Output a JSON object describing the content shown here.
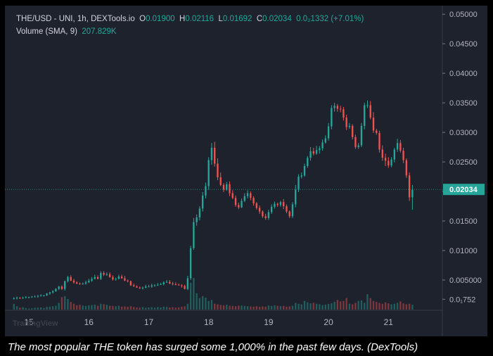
{
  "header": {
    "symbol": "THE/USD - UNI, 1h, DEXTools.io",
    "o_label": "O",
    "o_value": "0.01900",
    "h_label": "H",
    "h_value": "0.02116",
    "l_label": "L",
    "l_value": "0.01692",
    "c_label": "C",
    "c_value": "0.02034",
    "change": "0.0₂1332 (+7.01%)",
    "volume_label": "Volume (SMA, 9)",
    "volume_value": "207.829K"
  },
  "caption": "The most popular THE token has surged some 1,000% in the past few days. (DexTools)",
  "watermark": "TradingView",
  "colors": {
    "up": "#26a69a",
    "down": "#ef5350",
    "background": "#1e222d",
    "price_tag": "#26a69a"
  },
  "chart_data": {
    "type": "candlestick",
    "timeframe": "1h",
    "x": [
      14.75,
      14.8,
      14.85,
      14.9,
      14.95,
      15,
      15.05,
      15.1,
      15.15,
      15.2,
      15.25,
      15.3,
      15.35,
      15.4,
      15.45,
      15.5,
      15.55,
      15.6,
      15.65,
      15.7,
      15.75,
      15.8,
      15.85,
      15.9,
      15.95,
      16,
      16.05,
      16.1,
      16.15,
      16.2,
      16.25,
      16.3,
      16.35,
      16.4,
      16.45,
      16.5,
      16.55,
      16.6,
      16.65,
      16.7,
      16.75,
      16.8,
      16.85,
      16.9,
      16.95,
      17,
      17.05,
      17.1,
      17.15,
      17.2,
      17.25,
      17.3,
      17.35,
      17.4,
      17.45,
      17.5,
      17.55,
      17.6,
      17.65,
      17.7,
      17.75,
      17.8,
      17.85,
      17.9,
      17.95,
      18,
      18.05,
      18.1,
      18.15,
      18.2,
      18.25,
      18.3,
      18.35,
      18.4,
      18.45,
      18.5,
      18.55,
      18.6,
      18.65,
      18.7,
      18.75,
      18.8,
      18.85,
      18.9,
      18.95,
      19,
      19.05,
      19.1,
      19.15,
      19.2,
      19.25,
      19.3,
      19.35,
      19.4,
      19.45,
      19.5,
      19.55,
      19.6,
      19.65,
      19.7,
      19.75,
      19.8,
      19.85,
      19.9,
      19.95,
      20,
      20.05,
      20.1,
      20.15,
      20.2,
      20.25,
      20.3,
      20.35,
      20.4,
      20.45,
      20.5,
      20.55,
      20.6,
      20.65,
      20.7,
      20.75,
      20.8,
      20.85,
      20.9,
      20.95,
      21,
      21.05,
      21.1,
      21.15,
      21.2,
      21.25,
      21.3,
      21.35,
      21.4
    ],
    "open": [
      0.0018,
      0.0019,
      0.002,
      0.0019,
      0.002,
      0.0021,
      0.0021,
      0.0022,
      0.0022,
      0.0023,
      0.0024,
      0.0024,
      0.0027,
      0.0029,
      0.0031,
      0.0035,
      0.0039,
      0.0035,
      0.0048,
      0.0055,
      0.0049,
      0.0046,
      0.0044,
      0.0043,
      0.0044,
      0.0046,
      0.0049,
      0.0052,
      0.0055,
      0.0052,
      0.0062,
      0.0059,
      0.006,
      0.0055,
      0.0051,
      0.0052,
      0.0056,
      0.0053,
      0.0049,
      0.0048,
      0.0041,
      0.0039,
      0.0037,
      0.0036,
      0.0037,
      0.0039,
      0.0039,
      0.0041,
      0.0041,
      0.0042,
      0.0043,
      0.0046,
      0.0047,
      0.0044,
      0.0043,
      0.0042,
      0.0041,
      0.004,
      0.0035,
      0.0053,
      0.0104,
      0.0148,
      0.0156,
      0.0171,
      0.0193,
      0.0209,
      0.0253,
      0.0274,
      0.0247,
      0.0224,
      0.0211,
      0.0203,
      0.0212,
      0.0197,
      0.0189,
      0.0177,
      0.0173,
      0.0184,
      0.0192,
      0.0197,
      0.0189,
      0.018,
      0.0172,
      0.0166,
      0.0158,
      0.0155,
      0.0165,
      0.0174,
      0.0179,
      0.0177,
      0.0182,
      0.0175,
      0.0166,
      0.0158,
      0.0178,
      0.0203,
      0.0225,
      0.0227,
      0.0243,
      0.0257,
      0.0268,
      0.0264,
      0.027,
      0.0273,
      0.0283,
      0.029,
      0.031,
      0.0341,
      0.0345,
      0.034,
      0.0339,
      0.0325,
      0.0309,
      0.0311,
      0.0292,
      0.0275,
      0.0278,
      0.0311,
      0.0346,
      0.0346,
      0.0325,
      0.0303,
      0.0299,
      0.0271,
      0.0257,
      0.0252,
      0.0244,
      0.0254,
      0.0271,
      0.0282,
      0.0269,
      0.0253,
      0.0227,
      0.019
    ],
    "high": [
      0.0021,
      0.0022,
      0.0021,
      0.0022,
      0.0023,
      0.0022,
      0.0023,
      0.0024,
      0.0025,
      0.0026,
      0.0025,
      0.0028,
      0.003,
      0.0033,
      0.0036,
      0.004,
      0.0041,
      0.0049,
      0.0057,
      0.0058,
      0.0052,
      0.0048,
      0.0046,
      0.0046,
      0.0049,
      0.0052,
      0.0055,
      0.0059,
      0.0058,
      0.0065,
      0.0065,
      0.0063,
      0.0063,
      0.0058,
      0.0054,
      0.0059,
      0.0059,
      0.0057,
      0.0051,
      0.0049,
      0.0044,
      0.0041,
      0.0039,
      0.0039,
      0.0042,
      0.0042,
      0.0044,
      0.0043,
      0.0045,
      0.0045,
      0.0048,
      0.005,
      0.005,
      0.0047,
      0.0046,
      0.0044,
      0.0043,
      0.0042,
      0.0057,
      0.0108,
      0.0155,
      0.0161,
      0.0175,
      0.0199,
      0.0215,
      0.0258,
      0.0282,
      0.0284,
      0.0256,
      0.0232,
      0.0214,
      0.0216,
      0.0217,
      0.0202,
      0.0193,
      0.0181,
      0.0188,
      0.0197,
      0.0202,
      0.02,
      0.0192,
      0.0182,
      0.0176,
      0.0168,
      0.0162,
      0.0169,
      0.0178,
      0.0183,
      0.0181,
      0.0184,
      0.0187,
      0.0178,
      0.0168,
      0.0182,
      0.0211,
      0.0229,
      0.0232,
      0.0247,
      0.026,
      0.0275,
      0.0274,
      0.0277,
      0.0277,
      0.0288,
      0.0295,
      0.0316,
      0.0346,
      0.035,
      0.0348,
      0.0345,
      0.0343,
      0.033,
      0.0316,
      0.0314,
      0.0296,
      0.0282,
      0.0316,
      0.035,
      0.0354,
      0.0353,
      0.0334,
      0.0306,
      0.0303,
      0.0278,
      0.0264,
      0.0258,
      0.0258,
      0.0274,
      0.0289,
      0.0287,
      0.0274,
      0.0256,
      0.0232,
      0.0211
    ],
    "low": [
      0.0017,
      0.0017,
      0.0018,
      0.0018,
      0.0019,
      0.0019,
      0.002,
      0.0021,
      0.002,
      0.0022,
      0.0022,
      0.0023,
      0.0025,
      0.0027,
      0.003,
      0.0033,
      0.0033,
      0.0032,
      0.0046,
      0.0048,
      0.0044,
      0.0043,
      0.0042,
      0.0042,
      0.0042,
      0.0045,
      0.0047,
      0.0051,
      0.0051,
      0.005,
      0.0057,
      0.0057,
      0.0054,
      0.0049,
      0.0049,
      0.0051,
      0.0052,
      0.0048,
      0.0046,
      0.004,
      0.0039,
      0.0037,
      0.0035,
      0.0034,
      0.0036,
      0.0038,
      0.0037,
      0.0039,
      0.004,
      0.0042,
      0.0041,
      0.0045,
      0.0043,
      0.0041,
      0.0041,
      0.0041,
      0.0037,
      0.0034,
      0.0033,
      0.005,
      0.0101,
      0.0142,
      0.0151,
      0.0166,
      0.0188,
      0.0203,
      0.0245,
      0.0242,
      0.0219,
      0.0209,
      0.0199,
      0.0201,
      0.0192,
      0.0187,
      0.0174,
      0.017,
      0.0172,
      0.0182,
      0.0188,
      0.0185,
      0.0176,
      0.0169,
      0.0162,
      0.0155,
      0.0152,
      0.0152,
      0.0162,
      0.0171,
      0.0174,
      0.0174,
      0.017,
      0.0163,
      0.0155,
      0.0155,
      0.0173,
      0.0199,
      0.0222,
      0.0225,
      0.024,
      0.0252,
      0.0261,
      0.0262,
      0.0264,
      0.0269,
      0.0281,
      0.0286,
      0.0305,
      0.0335,
      0.0335,
      0.0334,
      0.032,
      0.0304,
      0.0306,
      0.0288,
      0.0272,
      0.0272,
      0.0275,
      0.0305,
      0.0341,
      0.0322,
      0.0299,
      0.0296,
      0.0266,
      0.0252,
      0.0243,
      0.024,
      0.0241,
      0.0249,
      0.0267,
      0.0266,
      0.0248,
      0.0223,
      0.0184,
      0.0169
    ],
    "close": [
      0.0019,
      0.002,
      0.0019,
      0.002,
      0.0021,
      0.0021,
      0.0022,
      0.0022,
      0.0023,
      0.0024,
      0.0024,
      0.0027,
      0.0029,
      0.0031,
      0.0035,
      0.0039,
      0.0035,
      0.0048,
      0.0055,
      0.0049,
      0.0046,
      0.0044,
      0.0043,
      0.0044,
      0.0046,
      0.0049,
      0.0052,
      0.0055,
      0.0052,
      0.0062,
      0.0059,
      0.006,
      0.0055,
      0.0051,
      0.0052,
      0.0056,
      0.0053,
      0.0049,
      0.0048,
      0.0041,
      0.0039,
      0.0037,
      0.0036,
      0.0037,
      0.0039,
      0.0039,
      0.0041,
      0.0041,
      0.0042,
      0.0043,
      0.0046,
      0.0047,
      0.0044,
      0.0043,
      0.0042,
      0.0041,
      0.004,
      0.0035,
      0.0053,
      0.0104,
      0.0148,
      0.0156,
      0.0171,
      0.0193,
      0.0209,
      0.0253,
      0.0274,
      0.0247,
      0.0224,
      0.0211,
      0.0203,
      0.0212,
      0.0197,
      0.0189,
      0.0177,
      0.0173,
      0.0184,
      0.0192,
      0.0197,
      0.0189,
      0.018,
      0.0172,
      0.0166,
      0.0158,
      0.0155,
      0.0165,
      0.0174,
      0.0179,
      0.0177,
      0.0182,
      0.0175,
      0.0166,
      0.0158,
      0.0178,
      0.0203,
      0.0225,
      0.0227,
      0.0243,
      0.0257,
      0.0268,
      0.0264,
      0.027,
      0.0273,
      0.0283,
      0.029,
      0.031,
      0.0341,
      0.0345,
      0.034,
      0.0339,
      0.0325,
      0.0309,
      0.0311,
      0.0292,
      0.0275,
      0.0278,
      0.0311,
      0.0346,
      0.0346,
      0.0325,
      0.0303,
      0.0299,
      0.0271,
      0.0257,
      0.0252,
      0.0244,
      0.0254,
      0.0271,
      0.0282,
      0.0269,
      0.0253,
      0.0227,
      0.019,
      0.0203
    ],
    "volume": [
      60,
      35,
      20,
      25,
      15,
      10,
      14,
      18,
      20,
      22,
      16,
      28,
      30,
      35,
      40,
      70,
      130,
      140,
      110,
      80,
      60,
      45,
      50,
      42,
      38,
      44,
      48,
      52,
      40,
      60,
      56,
      50,
      40,
      38,
      35,
      40,
      30,
      32,
      28,
      35,
      26,
      22,
      20,
      25,
      18,
      22,
      24,
      20,
      26,
      22,
      30,
      28,
      22,
      25,
      20,
      22,
      30,
      35,
      60,
      280,
      330,
      170,
      120,
      140,
      125,
      90,
      100,
      60,
      55,
      48,
      45,
      50,
      40,
      38,
      35,
      40,
      42,
      38,
      36,
      33,
      30,
      35,
      28,
      32,
      30,
      42,
      38,
      44,
      40,
      36,
      38,
      30,
      34,
      40,
      70,
      60,
      55,
      90,
      75,
      65,
      70,
      60,
      55,
      48,
      52,
      58,
      65,
      80,
      100,
      85,
      90,
      120,
      60,
      55,
      70,
      90,
      95,
      70,
      160,
      120,
      90,
      80,
      70,
      60,
      75,
      65,
      55,
      60,
      70,
      85,
      65,
      55,
      60,
      50
    ],
    "y_axis_ticks": [
      "0.05000",
      "0.04500",
      "0.04000",
      "0.03500",
      "0.03000",
      "0.02500",
      "0.02000",
      "0.01500",
      "0.01000",
      "0.005000",
      "0.0₁752"
    ],
    "x_axis_ticks": [
      "15",
      "16",
      "17",
      "18",
      "19",
      "20",
      "21"
    ],
    "ylim": [
      0,
      0.0505
    ],
    "xlim": [
      14.6,
      21.9
    ],
    "last_price_label": "0.02034",
    "last_price": 0.02034,
    "grid": false
  }
}
